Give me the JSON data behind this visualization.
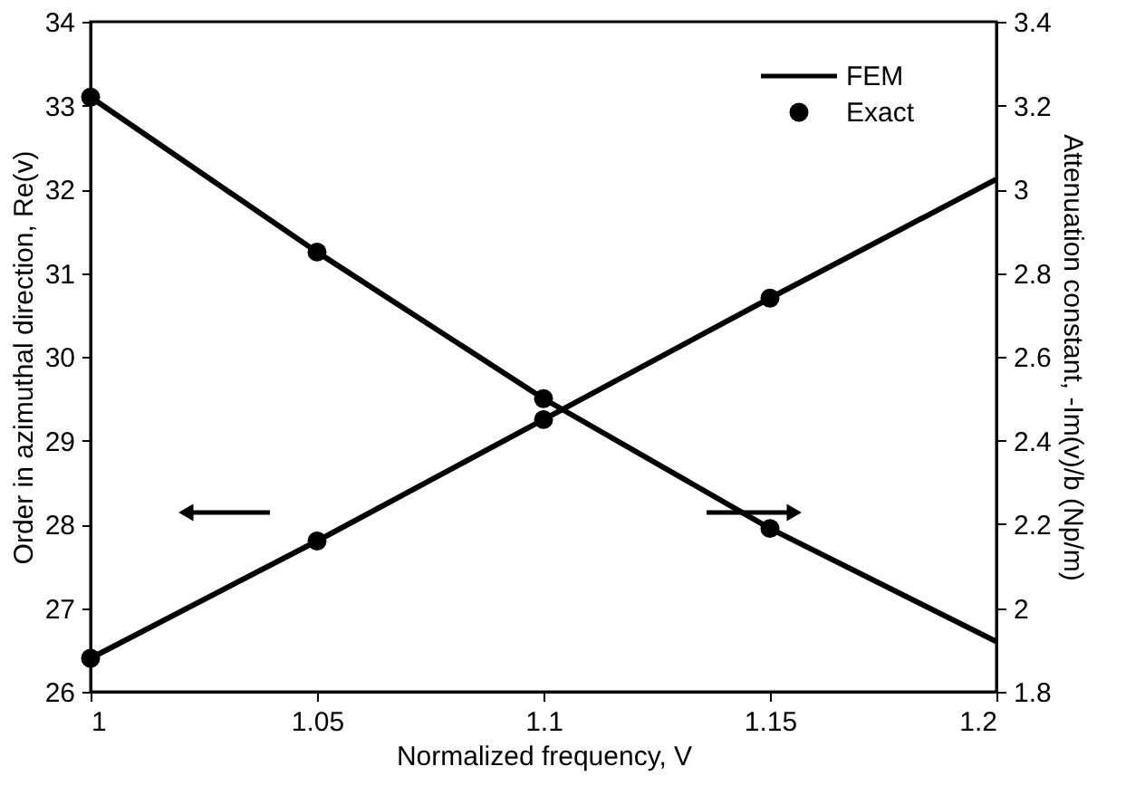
{
  "chart_data": {
    "type": "line",
    "xlabel": "Normalized frequency, V",
    "ylabel": "Order in azimuthal direction, Re(v)",
    "y2label": "Attenuation constant, -Im(v)/b (Np/m)",
    "x": [
      1,
      1.05,
      1.1,
      1.15,
      1.2
    ],
    "series": [
      {
        "name": "FEM",
        "marker": "none",
        "color": "#000000",
        "values": [
          26.4,
          27.8,
          29.25,
          30.7,
          32.12
        ]
      },
      {
        "axis": "y2",
        "marker": "none",
        "color": "#000000",
        "values": [
          3.22,
          2.85,
          2.5,
          2.19,
          1.92
        ]
      },
      {
        "name": "Exact",
        "type": "scatter",
        "marker": "circle",
        "color": "#000000",
        "x": [
          1,
          1.05,
          1.1,
          1.15
        ],
        "values": [
          26.4,
          27.8,
          29.25,
          30.7
        ]
      },
      {
        "type": "scatter",
        "axis": "y2",
        "marker": "circle",
        "color": "#000000",
        "x": [
          1,
          1.05,
          1.1,
          1.15
        ],
        "values": [
          3.22,
          2.85,
          2.5,
          2.19
        ]
      }
    ],
    "xlim": [
      1,
      1.2
    ],
    "xticks": [
      1,
      1.05,
      1.1,
      1.15,
      1.2
    ],
    "ylim": [
      26,
      34
    ],
    "yticks": [
      26,
      27,
      28,
      29,
      30,
      31,
      32,
      33,
      34
    ],
    "y2lim": [
      1.8,
      3.4
    ],
    "y2ticks": [
      1.8,
      2,
      2.2,
      2.4,
      2.6,
      2.8,
      3,
      3.2,
      3.4
    ],
    "line_style": "solid",
    "grid": false,
    "legend": "top right"
  }
}
